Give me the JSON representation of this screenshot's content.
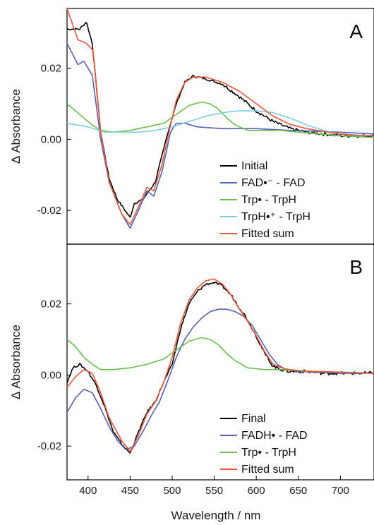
{
  "chart_data": [
    {
      "type": "line",
      "panel": "A",
      "ylabel": "Δ Absorbance",
      "xlim": [
        375,
        740
      ],
      "ylim": [
        -0.0295,
        0.0368
      ],
      "yticks": [
        0.02,
        0.0,
        -0.02
      ],
      "ytick_labels": [
        "0.02",
        "0.00",
        "-0.02"
      ],
      "legend_position": "bottom-right",
      "series": [
        {
          "name": "Initial",
          "color": "#000000",
          "x": [
            375,
            390,
            398,
            405,
            415,
            425,
            435,
            450,
            455,
            465,
            480,
            495,
            505,
            515,
            525,
            540,
            560,
            580,
            600,
            620,
            640,
            660,
            680,
            700,
            720,
            740
          ],
          "y": [
            0.031,
            0.031,
            0.033,
            0.027,
            0.002,
            -0.011,
            -0.017,
            -0.022,
            -0.018,
            -0.017,
            -0.012,
            0.002,
            0.01,
            0.016,
            0.0178,
            0.017,
            0.0155,
            0.012,
            0.008,
            0.005,
            0.003,
            0.002,
            0.0015,
            0.001,
            0.001,
            0.001
          ]
        },
        {
          "name": "FAD•⁻ - FAD",
          "color": "#5561b7",
          "x": [
            375,
            388,
            395,
            405,
            415,
            425,
            440,
            450,
            460,
            470,
            478,
            488,
            498,
            505,
            515,
            530,
            560,
            600,
            640,
            700,
            740
          ],
          "y": [
            0.027,
            0.021,
            0.022,
            0.018,
            0.0,
            -0.012,
            -0.021,
            -0.025,
            -0.02,
            -0.0145,
            -0.016,
            -0.009,
            0.002,
            0.0045,
            0.0045,
            0.0035,
            0.003,
            0.003,
            0.0025,
            0.002,
            0.0015
          ]
        },
        {
          "name": "Trp• - TrpH",
          "color": "#6cbf4e",
          "x": [
            375,
            385,
            395,
            405,
            415,
            430,
            450,
            470,
            490,
            505,
            520,
            535,
            545,
            555,
            565,
            575,
            590,
            610,
            630,
            650,
            700,
            740
          ],
          "y": [
            0.01,
            0.008,
            0.006,
            0.004,
            0.0025,
            0.002,
            0.0025,
            0.0035,
            0.0045,
            0.007,
            0.0095,
            0.0105,
            0.01,
            0.0085,
            0.006,
            0.004,
            0.0025,
            0.0025,
            0.0025,
            0.002,
            0.001,
            0.0005
          ]
        },
        {
          "name": "TrpH•⁺ - TrpH",
          "color": "#7fcbe4",
          "x": [
            375,
            400,
            420,
            440,
            460,
            480,
            500,
            520,
            540,
            560,
            580,
            600,
            620,
            640,
            660,
            680,
            700,
            740
          ],
          "y": [
            0.0045,
            0.0035,
            0.002,
            0.002,
            0.002,
            0.0025,
            0.0035,
            0.005,
            0.0065,
            0.0075,
            0.008,
            0.008,
            0.0075,
            0.006,
            0.004,
            0.0025,
            0.0015,
            0.001
          ]
        },
        {
          "name": "Fitted sum",
          "color": "#e8573a",
          "x": [
            375,
            388,
            398,
            406,
            415,
            425,
            440,
            450,
            460,
            470,
            478,
            488,
            498,
            505,
            515,
            525,
            540,
            560,
            580,
            600,
            620,
            640,
            660,
            680,
            700,
            720,
            740
          ],
          "y": [
            0.0368,
            0.028,
            0.027,
            0.025,
            0.002,
            -0.012,
            -0.021,
            -0.024,
            -0.019,
            -0.0135,
            -0.0145,
            -0.007,
            0.004,
            0.011,
            0.016,
            0.0175,
            0.0175,
            0.016,
            0.0135,
            0.01,
            0.0065,
            0.0042,
            0.003,
            0.0022,
            0.0015,
            0.001,
            0.001
          ]
        }
      ]
    },
    {
      "type": "line",
      "panel": "B",
      "xlabel": "Wavelength / nm",
      "ylabel": "Δ Absorbance",
      "xlim": [
        375,
        740
      ],
      "ylim": [
        -0.0295,
        0.0368
      ],
      "xticks": [
        400,
        450,
        500,
        550,
        600,
        650,
        700
      ],
      "yticks": [
        0.02,
        0.0,
        -0.02
      ],
      "ytick_labels": [
        "0.02",
        "0.00",
        "-0.02"
      ],
      "legend_position": "bottom-right",
      "series": [
        {
          "name": "Final",
          "color": "#000000",
          "x": [
            375,
            382,
            390,
            400,
            410,
            420,
            430,
            440,
            450,
            460,
            470,
            480,
            490,
            500,
            510,
            520,
            530,
            540,
            550,
            560,
            570,
            580,
            590,
            600,
            610,
            620,
            630,
            640,
            660,
            680,
            700,
            720,
            740
          ],
          "y": [
            -0.002,
            0.002,
            0.003,
            0.001,
            -0.003,
            -0.009,
            -0.016,
            -0.0195,
            -0.022,
            -0.016,
            -0.0105,
            -0.0075,
            -0.002,
            0.003,
            0.013,
            0.02,
            0.0235,
            0.0255,
            0.026,
            0.025,
            0.0225,
            0.019,
            0.0155,
            0.011,
            0.006,
            0.0025,
            0.0015,
            0.001,
            0.001,
            0.0005,
            0.0005,
            0.0005,
            0.0005
          ]
        },
        {
          "name": "FADH• - FAD",
          "color": "#5561b7",
          "x": [
            375,
            385,
            395,
            405,
            415,
            425,
            435,
            445,
            455,
            465,
            475,
            485,
            495,
            505,
            515,
            525,
            535,
            545,
            555,
            565,
            575,
            585,
            595,
            605,
            615,
            625,
            635,
            650,
            700,
            740
          ],
          "y": [
            -0.0105,
            -0.0065,
            -0.004,
            -0.005,
            -0.0095,
            -0.0145,
            -0.0185,
            -0.021,
            -0.02,
            -0.016,
            -0.0115,
            -0.0075,
            -0.0015,
            0.005,
            0.01,
            0.0135,
            0.016,
            0.0178,
            0.0185,
            0.0185,
            0.0178,
            0.0165,
            0.014,
            0.01,
            0.006,
            0.003,
            0.0015,
            0.001,
            0.0005,
            0.0005
          ]
        },
        {
          "name": "Trp• - TrpH",
          "color": "#6cbf4e",
          "x": [
            375,
            385,
            395,
            405,
            415,
            430,
            450,
            470,
            490,
            505,
            520,
            535,
            545,
            555,
            565,
            575,
            590,
            610,
            630,
            650,
            700,
            740
          ],
          "y": [
            0.01,
            0.008,
            0.005,
            0.003,
            0.0015,
            0.0015,
            0.002,
            0.003,
            0.0045,
            0.007,
            0.0095,
            0.0105,
            0.01,
            0.0085,
            0.006,
            0.004,
            0.002,
            0.0015,
            0.0015,
            0.0012,
            0.0008,
            0.0005
          ]
        },
        {
          "name": "Fitted sum",
          "color": "#e8573a",
          "x": [
            375,
            385,
            395,
            405,
            415,
            425,
            440,
            450,
            460,
            470,
            480,
            490,
            500,
            510,
            520,
            530,
            540,
            550,
            560,
            570,
            580,
            590,
            600,
            610,
            620,
            630,
            640,
            660,
            700,
            740
          ],
          "y": [
            -0.0035,
            -0.0005,
            0.0015,
            0.0005,
            -0.005,
            -0.012,
            -0.0185,
            -0.0215,
            -0.017,
            -0.011,
            -0.0075,
            -0.002,
            0.005,
            0.0145,
            0.021,
            0.0245,
            0.0265,
            0.027,
            0.0255,
            0.0225,
            0.0185,
            0.015,
            0.011,
            0.0065,
            0.003,
            0.002,
            0.0015,
            0.001,
            0.0008,
            0.0005
          ]
        }
      ]
    }
  ]
}
